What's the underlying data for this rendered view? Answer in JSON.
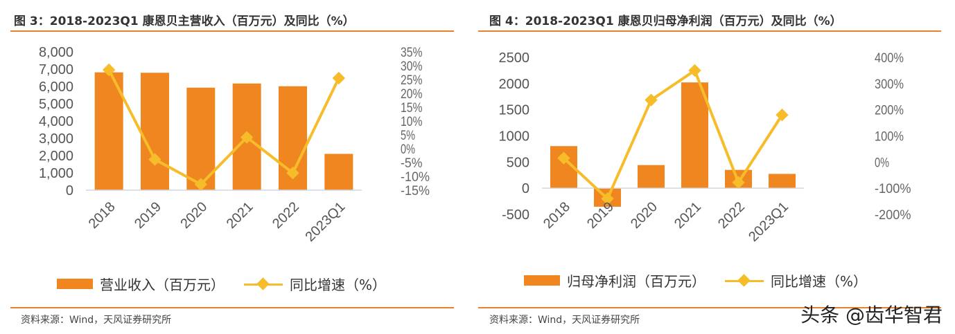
{
  "charts": [
    {
      "title": "图 3：2018-2023Q1 康恩贝主营收入（百万元）及同比（%）",
      "source": "资料来源：Wind，天风证券研究所",
      "legend": {
        "bar": "营业收入（百万元）",
        "line": "同比增速（%）"
      }
    },
    {
      "title": "图 4：2018-2023Q1 康恩贝归母净利润（百万元）及同比（%）",
      "source": "资料来源：Wind，天风证券研究所",
      "legend": {
        "bar": "归母净利润（百万元）",
        "line": "同比增速（%）"
      }
    }
  ],
  "watermark": "头条 @齿华智君",
  "colors": {
    "bar": "#f0861f",
    "line": "#f6bc2a",
    "rule": "#e8812a"
  },
  "chart_data": [
    {
      "type": "bar+line",
      "title": "图 3：2018-2023Q1 康恩贝主营收入（百万元）及同比（%）",
      "categories": [
        "2018",
        "2019",
        "2020",
        "2021",
        "2022",
        "2023Q1"
      ],
      "series": [
        {
          "name": "营业收入（百万元）",
          "type": "bar",
          "axis": "left",
          "values": [
            6815,
            6790,
            5930,
            6170,
            6010,
            2100
          ]
        },
        {
          "name": "同比增速（%）",
          "type": "line",
          "axis": "right",
          "values": [
            28.5,
            -3.9,
            -12.9,
            4.1,
            -8.8,
            25.5
          ]
        }
      ],
      "ylim_left": [
        0,
        8000
      ],
      "yticks_left": [
        "8,000",
        "7,000",
        "6,000",
        "5,000",
        "4,000",
        "3,000",
        "2,000",
        "1,000",
        "0"
      ],
      "ylim_right": [
        -15,
        35
      ],
      "yticks_right": [
        "35%",
        "30%",
        "25%",
        "20%",
        "15%",
        "10%",
        "5%",
        "0%",
        "-5%",
        "-10%",
        "-15%"
      ],
      "grid": false,
      "legend": "bottom"
    },
    {
      "type": "bar+line",
      "title": "图 4：2018-2023Q1 康恩贝归母净利润（百万元）及同比（%）",
      "categories": [
        "2018",
        "2019",
        "2020",
        "2021",
        "2022",
        "2023Q1"
      ],
      "series": [
        {
          "name": "归母净利润（百万元）",
          "type": "bar",
          "axis": "left",
          "values": [
            805,
            -354,
            442,
            2022,
            350,
            274
          ]
        },
        {
          "name": "同比增速（%）",
          "type": "line",
          "axis": "right",
          "values": [
            15,
            -140,
            237,
            350,
            -78,
            180
          ]
        }
      ],
      "ylim_left": [
        -500,
        2500
      ],
      "yticks_left": [
        "2500",
        "2000",
        "1500",
        "1000",
        "500",
        "0",
        "-500"
      ],
      "ylim_right": [
        -200,
        400
      ],
      "yticks_right": [
        "400%",
        "300%",
        "200%",
        "100%",
        "0%",
        "-100%",
        "-200%"
      ],
      "grid": false,
      "legend": "bottom"
    }
  ]
}
